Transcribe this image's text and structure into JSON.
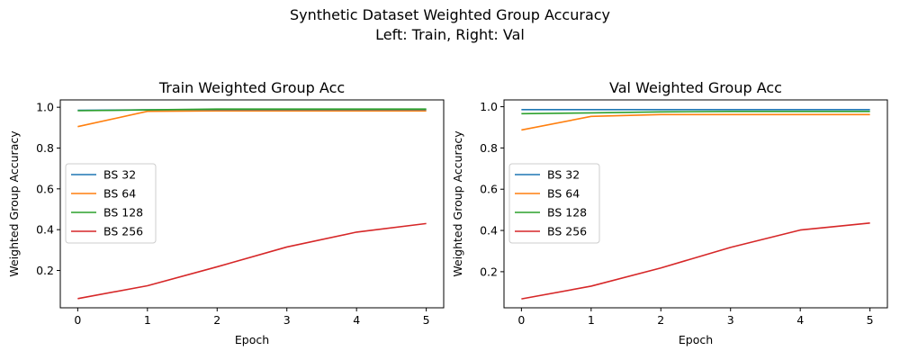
{
  "figure": {
    "suptitle_line1": "Synthetic Dataset Weighted Group Accuracy",
    "suptitle_line2": "Left: Train, Right: Val"
  },
  "series_colors": {
    "BS 32": "#1f77b4",
    "BS 64": "#ff7f0e",
    "BS 128": "#2ca02c",
    "BS 256": "#d62728"
  },
  "chart_data": [
    {
      "type": "line",
      "title": "Train Weighted Group Acc",
      "xlabel": "Epoch",
      "ylabel": "Weighted Group Accuracy",
      "x": [
        0,
        1,
        2,
        3,
        4,
        5
      ],
      "xlim": [
        -0.25,
        5.25
      ],
      "ylim": [
        0.017,
        1.036
      ],
      "xticks": [
        0,
        1,
        2,
        3,
        4,
        5
      ],
      "yticks": [
        0.2,
        0.4,
        0.6,
        0.8,
        1.0
      ],
      "grid": false,
      "legend_position": "center-left",
      "series": [
        {
          "name": "BS 32",
          "values": [
            0.985,
            0.987,
            0.988,
            0.988,
            0.988,
            0.988
          ]
        },
        {
          "name": "BS 64",
          "values": [
            0.905,
            0.98,
            0.982,
            0.982,
            0.982,
            0.982
          ]
        },
        {
          "name": "BS 128",
          "values": [
            0.983,
            0.987,
            0.991,
            0.991,
            0.991,
            0.991
          ]
        },
        {
          "name": "BS 256",
          "values": [
            0.062,
            0.125,
            0.218,
            0.315,
            0.388,
            0.43
          ]
        }
      ]
    },
    {
      "type": "line",
      "title": "Val Weighted Group Acc",
      "xlabel": "Epoch",
      "ylabel": "Weighted Group Accuracy",
      "x": [
        0,
        1,
        2,
        3,
        4,
        5
      ],
      "xlim": [
        -0.25,
        5.25
      ],
      "ylim": [
        0.025,
        1.033
      ],
      "xticks": [
        0,
        1,
        2,
        3,
        4,
        5
      ],
      "yticks": [
        0.2,
        0.4,
        0.6,
        0.8,
        1.0
      ],
      "grid": false,
      "legend_position": "center-left",
      "series": [
        {
          "name": "BS 32",
          "values": [
            0.986,
            0.986,
            0.986,
            0.986,
            0.986,
            0.986
          ]
        },
        {
          "name": "BS 64",
          "values": [
            0.887,
            0.953,
            0.962,
            0.962,
            0.962,
            0.962
          ]
        },
        {
          "name": "BS 128",
          "values": [
            0.966,
            0.97,
            0.975,
            0.977,
            0.977,
            0.977
          ]
        },
        {
          "name": "BS 256",
          "values": [
            0.068,
            0.13,
            0.218,
            0.318,
            0.402,
            0.436
          ]
        }
      ]
    }
  ]
}
